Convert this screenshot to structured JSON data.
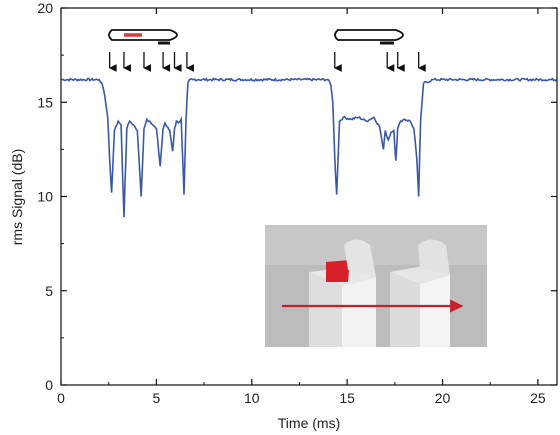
{
  "chart_data": {
    "type": "line",
    "xlabel": "Time (ms)",
    "ylabel": "rms Signal (dB)",
    "xlim": [
      0,
      26
    ],
    "ylim": [
      0,
      20
    ],
    "xticks": [
      0,
      5,
      10,
      15,
      20,
      25
    ],
    "yticks": [
      0,
      5,
      10,
      15,
      20
    ],
    "line_color": "#3a58a6",
    "series": [
      {
        "x": [
          0,
          2.0,
          2.15,
          2.3,
          2.45,
          2.55,
          2.65,
          2.8,
          3.0,
          3.15,
          3.3,
          3.45,
          3.6,
          3.8,
          4.0,
          4.2,
          4.35,
          4.5,
          4.65,
          4.8,
          5.0,
          5.2,
          5.35,
          5.45,
          5.55,
          5.7,
          5.85,
          5.95,
          6.05,
          6.15,
          6.3,
          6.45,
          6.55,
          6.65,
          6.75,
          6.9,
          7.2,
          14.0,
          14.15,
          14.25,
          14.35,
          14.45,
          14.6,
          14.8,
          15.2,
          15.6,
          16.0,
          16.4,
          16.7,
          16.9,
          17.0,
          17.15,
          17.3,
          17.45,
          17.55,
          17.65,
          17.8,
          18.0,
          18.3,
          18.5,
          18.65,
          18.75,
          18.85,
          19.0,
          19.5,
          26
        ],
        "y": [
          16.2,
          16.2,
          16.0,
          15.3,
          14.2,
          12.0,
          10.2,
          13.5,
          14.0,
          13.8,
          8.9,
          13.6,
          14.0,
          13.8,
          13.5,
          10.0,
          13.6,
          14.1,
          14.0,
          13.8,
          13.6,
          11.6,
          13.6,
          13.9,
          13.7,
          13.5,
          12.4,
          13.6,
          14.0,
          13.9,
          14.1,
          10.1,
          14.0,
          16.0,
          16.2,
          16.2,
          16.2,
          16.2,
          15.9,
          15.0,
          12.0,
          10.1,
          14.0,
          14.2,
          14.1,
          14.2,
          14.0,
          14.2,
          13.7,
          12.5,
          13.5,
          13.0,
          13.4,
          13.5,
          11.9,
          13.6,
          14.0,
          14.1,
          14.0,
          13.6,
          12.0,
          10.0,
          14.0,
          16.0,
          16.2,
          16.2
        ]
      }
    ],
    "annotation_arrows_x": [
      2.55,
      3.3,
      4.35,
      5.35,
      5.95,
      6.6,
      14.35,
      17.1,
      17.65,
      18.75
    ],
    "inset_arrow_color": "#c8202a",
    "schematic_accent_color": "#e03a3a"
  }
}
